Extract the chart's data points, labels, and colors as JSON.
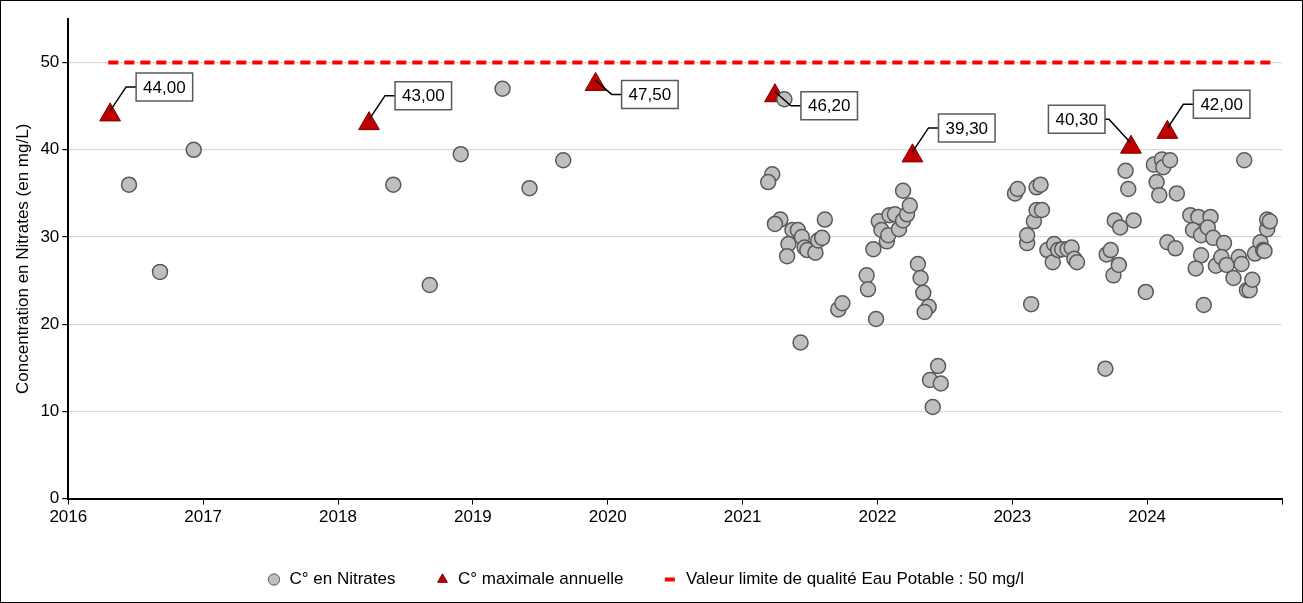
{
  "chart_data": {
    "type": "scatter",
    "ylabel": "Concentration en Nitrates (en mg/L)",
    "xlim": [
      2016,
      2025
    ],
    "xticks": [
      2016,
      2017,
      2018,
      2019,
      2020,
      2021,
      2022,
      2023,
      2024,
      {
        "value": 2025,
        "label": null
      }
    ],
    "ylim": [
      0,
      55
    ],
    "yticks": [
      0,
      10,
      20,
      30,
      40,
      50
    ],
    "grid": "y",
    "legend": "bottom",
    "series": [
      {
        "name": "C° en Nitrates",
        "marker": "circle",
        "color": "#bfbfbf",
        "x": [
          2016.45,
          2016.68,
          2016.93,
          2018.41,
          2018.68,
          2018.91,
          2019.22,
          2019.42,
          2019.67,
          2021.31,
          2021.22,
          2021.19,
          2021.28,
          2021.24,
          2021.61,
          2021.37,
          2021.41,
          2021.44,
          2021.34,
          2021.33,
          2021.46,
          2021.48,
          2021.54,
          2021.56,
          2021.59,
          2021.43,
          2021.71,
          2021.74,
          2021.92,
          2021.93,
          2021.99,
          2021.97,
          2022.01,
          2022.03,
          2022.07,
          2022.08,
          2022.09,
          2022.13,
          2022.16,
          2022.19,
          2022.22,
          2022.24,
          2022.19,
          2022.3,
          2022.32,
          2022.34,
          2022.38,
          2022.35,
          2022.45,
          2022.39,
          2022.47,
          2022.41,
          2023.02,
          2023.04,
          2023.11,
          2023.11,
          2023.14,
          2023.16,
          2023.18,
          2023.21,
          2023.18,
          2023.22,
          2023.26,
          2023.3,
          2023.31,
          2023.34,
          2023.37,
          2023.41,
          2023.44,
          2023.46,
          2023.48,
          2023.69,
          2023.7,
          2023.73,
          2023.75,
          2023.79,
          2023.76,
          2023.8,
          2023.9,
          2023.84,
          2023.86,
          2023.99,
          2024.05,
          2024.11,
          2024.12,
          2024.17,
          2024.07,
          2024.09,
          2024.22,
          2024.15,
          2024.21,
          2024.32,
          2024.38,
          2024.47,
          2024.34,
          2024.4,
          2024.45,
          2024.49,
          2024.57,
          2024.4,
          2024.36,
          2024.42,
          2024.51,
          2024.55,
          2024.59,
          2024.64,
          2024.68,
          2024.7,
          2024.72,
          2024.74,
          2024.76,
          2024.78,
          2024.8,
          2024.84,
          2024.86,
          2024.87,
          2024.89,
          2024.89,
          2024.91
        ],
        "values": [
          36,
          26,
          40,
          36,
          24.5,
          39.5,
          47,
          35.6,
          38.8,
          45.8,
          37.2,
          36.3,
          32,
          31.5,
          32,
          30.8,
          30.8,
          30,
          29.2,
          27.8,
          28.8,
          28.5,
          28.2,
          29.6,
          29.9,
          17.9,
          21.7,
          22.4,
          25.6,
          24,
          20.6,
          28.6,
          31.8,
          30.8,
          29.5,
          30.2,
          32.5,
          32.6,
          30.9,
          31.9,
          32.6,
          33.6,
          35.3,
          26.9,
          25.3,
          23.6,
          22,
          21.4,
          15.2,
          13.6,
          13.2,
          10.5,
          35,
          35.5,
          29.3,
          30.2,
          22.3,
          31.8,
          35.7,
          36,
          33.1,
          33.1,
          28.5,
          27.1,
          29.2,
          28.5,
          28.6,
          28.6,
          28.8,
          27.5,
          27.1,
          14.9,
          28,
          28.5,
          25.6,
          26.8,
          31.9,
          31.1,
          31.9,
          37.6,
          35.5,
          23.7,
          38.3,
          38.9,
          38,
          38.8,
          36.3,
          34.8,
          35,
          29.4,
          28.7,
          32.5,
          32.3,
          32.3,
          30.8,
          30.2,
          31.1,
          29.9,
          29.3,
          27.9,
          26.4,
          22.2,
          26.7,
          27.7,
          26.8,
          25.3,
          27.7,
          26.9,
          38.8,
          23.9,
          23.9,
          25.1,
          28.1,
          29.4,
          28.5,
          28.4,
          30.9,
          32,
          31.8
        ]
      },
      {
        "name": "C° maximale annuelle",
        "marker": "triangle",
        "color": "#c00000",
        "x": [
          2016.31,
          2018.23,
          2019.91,
          2021.24,
          2022.26,
          2023.88,
          2024.15
        ],
        "values": [
          44,
          43,
          47.5,
          46.2,
          39.3,
          40.3,
          42
        ],
        "value_labels": [
          "44,00",
          "43,00",
          "47,50",
          "46,20",
          "39,30",
          "40,30",
          "42,00"
        ]
      }
    ],
    "ref_lines": [
      {
        "axis": "y",
        "value": 50,
        "label": "Valeur limite de qualité Eau Potable : 50 mg/l",
        "color": "#ff0000",
        "line_style": "dashed"
      }
    ]
  }
}
